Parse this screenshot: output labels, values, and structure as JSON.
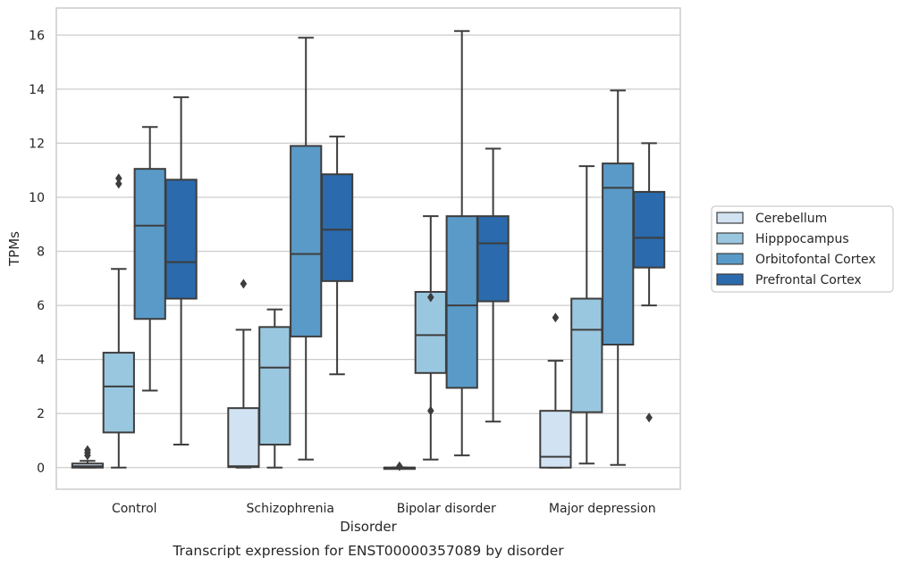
{
  "caption": "Transcript expression for ENST00000357089 by disorder",
  "chart_data": {
    "type": "box",
    "xlabel": "Disorder",
    "ylabel": "TPMs",
    "ylim": [
      -0.8,
      17.0
    ],
    "yticks": [
      0,
      2,
      4,
      6,
      8,
      10,
      12,
      14,
      16
    ],
    "grid": "horizontal",
    "legend_position": "right",
    "categories": [
      "Control",
      "Schizophrenia",
      "Bipolar disorder",
      "Major depression"
    ],
    "series": [
      {
        "name": "Cerebellum",
        "color": "#d1e2f2",
        "boxes": [
          {
            "whisker_low": 0.0,
            "q1": 0.0,
            "median": 0.05,
            "q3": 0.15,
            "whisker_high": 0.25,
            "outliers": [
              0.45,
              0.55,
              0.65
            ]
          },
          {
            "whisker_low": 0.0,
            "q1": 0.02,
            "median": 0.05,
            "q3": 2.2,
            "whisker_high": 5.1,
            "outliers": [
              6.8
            ]
          },
          {
            "whisker_low": 0.0,
            "q1": 0.0,
            "median": 0.0,
            "q3": 0.0,
            "whisker_high": 0.0,
            "outliers": [
              0.05
            ]
          },
          {
            "whisker_low": 0.0,
            "q1": 0.0,
            "median": 0.4,
            "q3": 2.1,
            "whisker_high": 3.95,
            "outliers": [
              5.55
            ]
          }
        ]
      },
      {
        "name": "Hipppocampus",
        "color": "#9ac7e0",
        "boxes": [
          {
            "whisker_low": 0.0,
            "q1": 1.3,
            "median": 3.0,
            "q3": 4.25,
            "whisker_high": 7.35,
            "outliers": [
              10.5,
              10.7
            ]
          },
          {
            "whisker_low": 0.0,
            "q1": 0.85,
            "median": 3.7,
            "q3": 5.2,
            "whisker_high": 5.85,
            "outliers": []
          },
          {
            "whisker_low": 0.3,
            "q1": 3.5,
            "median": 4.9,
            "q3": 6.5,
            "whisker_high": 9.3,
            "outliers": [
              2.1,
              6.3
            ]
          },
          {
            "whisker_low": 0.15,
            "q1": 2.05,
            "median": 5.1,
            "q3": 6.25,
            "whisker_high": 11.15,
            "outliers": []
          }
        ]
      },
      {
        "name": "Orbitofontal Cortex",
        "color": "#5a9ac8",
        "boxes": [
          {
            "whisker_low": 2.85,
            "q1": 5.5,
            "median": 8.95,
            "q3": 11.05,
            "whisker_high": 12.6,
            "outliers": []
          },
          {
            "whisker_low": 0.3,
            "q1": 4.85,
            "median": 7.9,
            "q3": 11.9,
            "whisker_high": 15.9,
            "outliers": []
          },
          {
            "whisker_low": 0.45,
            "q1": 2.95,
            "median": 6.0,
            "q3": 9.3,
            "whisker_high": 16.15,
            "outliers": []
          },
          {
            "whisker_low": 0.1,
            "q1": 4.55,
            "median": 10.35,
            "q3": 11.25,
            "whisker_high": 13.95,
            "outliers": []
          }
        ]
      },
      {
        "name": "Prefrontal Cortex",
        "color": "#2b6aac",
        "boxes": [
          {
            "whisker_low": 0.85,
            "q1": 6.25,
            "median": 7.6,
            "q3": 10.65,
            "whisker_high": 13.7,
            "outliers": []
          },
          {
            "whisker_low": 3.45,
            "q1": 6.9,
            "median": 8.8,
            "q3": 10.85,
            "whisker_high": 12.25,
            "outliers": []
          },
          {
            "whisker_low": 1.7,
            "q1": 6.15,
            "median": 8.3,
            "q3": 9.3,
            "whisker_high": 11.8,
            "outliers": []
          },
          {
            "whisker_low": 6.0,
            "q1": 7.4,
            "median": 8.5,
            "q3": 10.2,
            "whisker_high": 12.0,
            "outliers": [
              1.85
            ]
          }
        ]
      }
    ]
  }
}
